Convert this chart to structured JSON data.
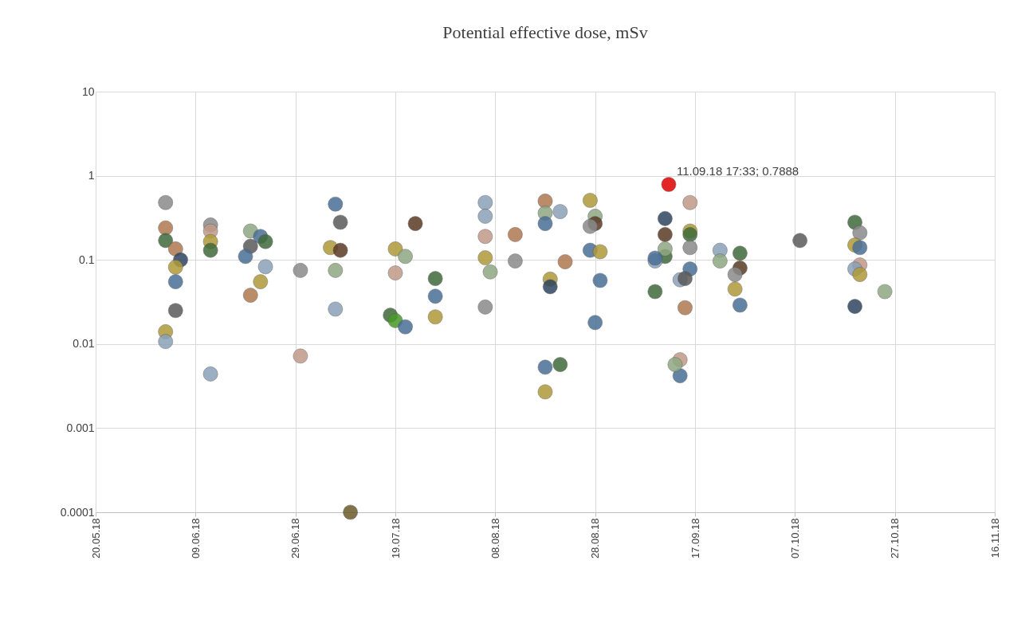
{
  "chart_data": {
    "type": "scatter",
    "title": "Potential effective dose, mSv",
    "x": [
      "2018-06-03",
      "2018-06-03",
      "2018-06-03",
      "2018-06-05",
      "2018-06-06",
      "2018-06-05",
      "2018-06-05",
      "2018-06-05",
      "2018-06-03",
      "2018-06-03",
      "2018-06-12",
      "2018-06-12",
      "2018-06-12",
      "2018-06-12",
      "2018-06-12",
      "2018-06-20",
      "2018-06-22",
      "2018-06-20",
      "2018-06-19",
      "2018-06-23",
      "2018-06-23",
      "2018-06-22",
      "2018-06-20",
      "2018-06-30",
      "2018-06-30",
      "2018-07-07",
      "2018-07-08",
      "2018-07-06",
      "2018-07-08",
      "2018-07-07",
      "2018-07-07",
      "2018-07-10",
      "2018-07-23",
      "2018-07-19",
      "2018-07-21",
      "2018-07-19",
      "2018-07-18",
      "2018-07-19",
      "2018-07-21",
      "2018-07-27",
      "2018-07-27",
      "2018-07-27",
      "2018-08-06",
      "2018-08-06",
      "2018-08-06",
      "2018-08-06",
      "2018-08-07",
      "2018-08-06",
      "2018-08-12",
      "2018-08-12",
      "2018-08-18",
      "2018-08-18",
      "2018-08-18",
      "2018-08-21",
      "2018-08-22",
      "2018-08-19",
      "2018-08-19",
      "2018-08-18",
      "2018-08-21",
      "2018-08-18",
      "2018-08-27",
      "2018-08-28",
      "2018-08-28",
      "2018-08-27",
      "2018-08-27",
      "2018-08-29",
      "2018-08-29",
      "2018-08-28",
      "2018-09-11T17:33",
      "2018-09-16",
      "2018-09-11",
      "2018-09-11",
      "2018-09-16",
      "2018-09-16",
      "2018-09-16",
      "2018-09-11",
      "2018-09-09",
      "2018-09-11",
      "2018-09-09",
      "2018-09-16",
      "2018-09-14",
      "2018-09-15",
      "2018-09-09",
      "2018-09-15",
      "2018-09-14",
      "2018-09-14",
      "2018-09-13",
      "2018-09-22",
      "2018-09-22",
      "2018-09-26",
      "2018-09-26",
      "2018-09-25",
      "2018-09-26",
      "2018-09-25",
      "2018-10-08",
      "2018-10-19",
      "2018-10-20",
      "2018-10-19",
      "2018-10-20",
      "2018-10-20",
      "2018-10-19",
      "2018-10-20",
      "2018-10-25",
      "2018-10-19"
    ],
    "values": [
      0.48,
      0.24,
      0.17,
      0.135,
      0.1,
      0.082,
      0.055,
      0.025,
      0.014,
      0.0107,
      0.26,
      0.22,
      0.165,
      0.13,
      0.0044,
      0.22,
      0.19,
      0.145,
      0.11,
      0.165,
      0.083,
      0.055,
      0.038,
      0.075,
      0.0072,
      0.46,
      0.28,
      0.14,
      0.13,
      0.075,
      0.026,
      0.0001,
      0.27,
      0.135,
      0.11,
      0.07,
      0.022,
      0.019,
      0.016,
      0.06,
      0.037,
      0.021,
      0.48,
      0.33,
      0.19,
      0.106,
      0.072,
      0.0275,
      0.2,
      0.097,
      0.5,
      0.36,
      0.27,
      0.375,
      0.095,
      0.059,
      0.048,
      0.0053,
      0.0057,
      0.0027,
      0.51,
      0.33,
      0.27,
      0.25,
      0.13,
      0.125,
      0.057,
      0.018,
      0.7888,
      0.48,
      0.31,
      0.2,
      0.22,
      0.2,
      0.14,
      0.11,
      0.097,
      0.135,
      0.105,
      0.078,
      0.058,
      0.06,
      0.042,
      0.027,
      0.0065,
      0.0042,
      0.0057,
      0.13,
      0.097,
      0.12,
      0.08,
      0.045,
      0.029,
      0.067,
      0.17,
      0.28,
      0.21,
      0.15,
      0.14,
      0.087,
      0.078,
      0.067,
      0.042,
      0.028
    ],
    "colors": [
      "#8a8a8a",
      "#b07850",
      "#3f6b3a",
      "#b07850",
      "#2f4560",
      "#b09a3a",
      "#4a6f96",
      "#5a5a5a",
      "#b09a3a",
      "#8aa0b8",
      "#8a8a8a",
      "#c09a88",
      "#b09a3a",
      "#3f6b3a",
      "#8aa0b8",
      "#8fa882",
      "#4a6f96",
      "#5a5a5a",
      "#4a6f96",
      "#3f6b3a",
      "#8aa0b8",
      "#b09a3a",
      "#b07850",
      "#8a8a8a",
      "#c09a88",
      "#4a6f96",
      "#5a5a5a",
      "#b09a3a",
      "#5a3a25",
      "#8fa882",
      "#8aa0b8",
      "#6b5a2a",
      "#5a3a25",
      "#b09a3a",
      "#8fa882",
      "#c09a88",
      "#3f6b3a",
      "#4a9a2a",
      "#4a6f96",
      "#3f6b3a",
      "#4a6f96",
      "#b09a3a",
      "#8aa0b8",
      "#8aa0b8",
      "#c09a88",
      "#b09a3a",
      "#8fa882",
      "#8a8a8a",
      "#b07850",
      "#8a8a8a",
      "#b07850",
      "#8fa882",
      "#4a6f96",
      "#8aa0b8",
      "#b07850",
      "#b09a3a",
      "#2f4560",
      "#4a6f96",
      "#3f6b3a",
      "#b09a3a",
      "#b09a3a",
      "#8fa882",
      "#5a3a25",
      "#8a8a8a",
      "#4a6f96",
      "#b09a3a",
      "#4a6f96",
      "#4a6f96",
      "#e00000",
      "#c09a88",
      "#2f4560",
      "#5a3a25",
      "#b09a3a",
      "#3f6b3a",
      "#8a8a8a",
      "#3f6b3a",
      "#8aa0b8",
      "#8fa882",
      "#4a6f96",
      "#4a6f96",
      "#8aa0b8",
      "#5a5a5a",
      "#3f6b3a",
      "#b07850",
      "#c09a88",
      "#4a6f96",
      "#8fa882",
      "#8aa0b8",
      "#8fa882",
      "#3f6b3a",
      "#5a3a25",
      "#b09a3a",
      "#4a6f96",
      "#8a8a8a",
      "#5a5a5a",
      "#3f6b3a",
      "#8a8a8a",
      "#b09a3a",
      "#4a6f96",
      "#c09a88",
      "#8aa0b8",
      "#b09a3a",
      "#8fa882",
      "#2f4560"
    ],
    "xlim": [
      "2018-05-20",
      "2018-11-16"
    ],
    "xticks": [
      {
        "value": "2018-05-20",
        "label": "20.05.18"
      },
      {
        "value": "2018-06-09",
        "label": "09.06.18"
      },
      {
        "value": "2018-06-29",
        "label": "29.06.18"
      },
      {
        "value": "2018-07-19",
        "label": "19.07.18"
      },
      {
        "value": "2018-08-08",
        "label": "08.08.18"
      },
      {
        "value": "2018-08-28",
        "label": "28.08.18"
      },
      {
        "value": "2018-09-17",
        "label": "17.09.18"
      },
      {
        "value": "2018-10-07",
        "label": "07.10.18"
      },
      {
        "value": "2018-10-27",
        "label": "27.10.18"
      },
      {
        "value": "2018-11-16",
        "label": "16.11.18"
      }
    ],
    "ylim": [
      0.0001,
      10
    ],
    "yticks": [
      0.0001,
      0.001,
      0.01,
      0.1,
      1,
      10
    ],
    "log": "y",
    "grid": true,
    "marker": "circle",
    "annotations": [
      {
        "text": "11.09.18 17:33; 0.7888",
        "x": "2018-09-11T17:33",
        "y": 0.7888
      }
    ]
  }
}
